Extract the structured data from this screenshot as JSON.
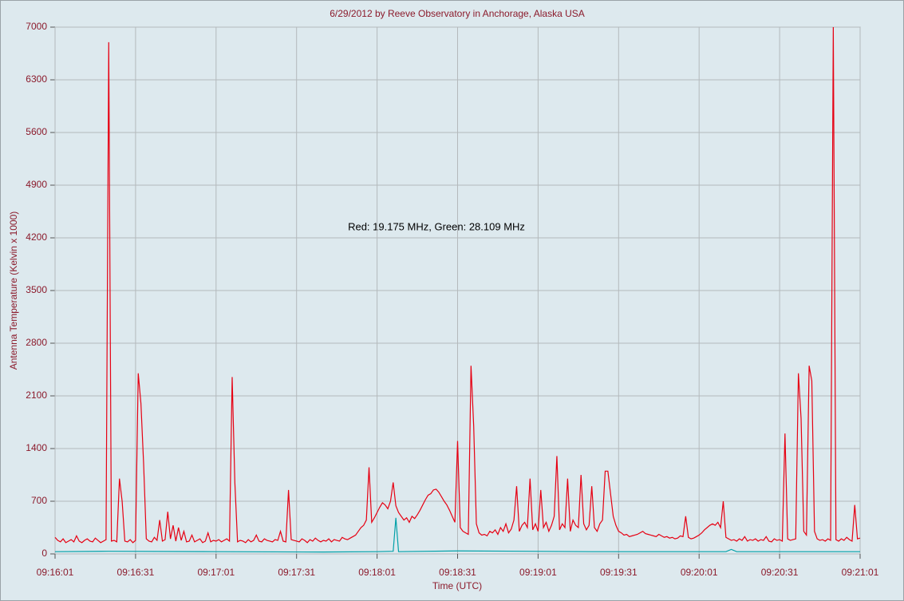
{
  "chart_data": {
    "type": "line",
    "title": "6/29/2012  by  Reeve Observatory  in  Anchorage, Alaska  USA",
    "x_label": "Time (UTC)",
    "y_label": "Antenna Temperature (Kelvin x 1000)",
    "annotation": "Red: 19.175 MHz, Green: 28.109 MHz",
    "xlim": [
      0,
      300
    ],
    "xticks": [
      {
        "value": 0,
        "label": "09:16:01"
      },
      {
        "value": 30,
        "label": "09:16:31"
      },
      {
        "value": 60,
        "label": "09:17:01"
      },
      {
        "value": 90,
        "label": "09:17:31"
      },
      {
        "value": 120,
        "label": "09:18:01"
      },
      {
        "value": 150,
        "label": "09:18:31"
      },
      {
        "value": 180,
        "label": "09:19:01"
      },
      {
        "value": 210,
        "label": "09:19:31"
      },
      {
        "value": 240,
        "label": "09:20:01"
      },
      {
        "value": 270,
        "label": "09:20:31"
      },
      {
        "value": 300,
        "label": "09:21:01"
      }
    ],
    "ylim": [
      0,
      7000
    ],
    "yticks": [
      0,
      700,
      1400,
      2100,
      2800,
      3500,
      4200,
      4900,
      5600,
      6300,
      7000
    ],
    "grid": true,
    "series": [
      {
        "color": "#e60012",
        "x": [
          0,
          1,
          2,
          3,
          4,
          5,
          6,
          7,
          8,
          9,
          10,
          11,
          12,
          13,
          14,
          15,
          16,
          17,
          18,
          19,
          20,
          21,
          22,
          23,
          24,
          25,
          26,
          27,
          28,
          29,
          30,
          31,
          32,
          33,
          34,
          35,
          36,
          37,
          38,
          39,
          40,
          41,
          42,
          43,
          44,
          45,
          46,
          47,
          48,
          49,
          50,
          51,
          52,
          53,
          54,
          55,
          56,
          57,
          58,
          59,
          60,
          61,
          62,
          63,
          64,
          65,
          66,
          67,
          68,
          69,
          70,
          71,
          72,
          73,
          74,
          75,
          76,
          77,
          78,
          79,
          80,
          81,
          82,
          83,
          84,
          85,
          86,
          87,
          88,
          89,
          90,
          91,
          92,
          93,
          94,
          95,
          96,
          97,
          98,
          99,
          100,
          101,
          102,
          103,
          104,
          105,
          106,
          107,
          108,
          109,
          110,
          111,
          112,
          113,
          114,
          115,
          116,
          117,
          118,
          119,
          120,
          121,
          122,
          123,
          124,
          125,
          126,
          127,
          128,
          129,
          130,
          131,
          132,
          133,
          134,
          135,
          136,
          137,
          138,
          139,
          140,
          141,
          142,
          143,
          144,
          145,
          146,
          147,
          148,
          149,
          150,
          151,
          152,
          153,
          154,
          155,
          156,
          157,
          158,
          159,
          160,
          161,
          162,
          163,
          164,
          165,
          166,
          167,
          168,
          169,
          170,
          171,
          172,
          173,
          174,
          175,
          176,
          177,
          178,
          179,
          180,
          181,
          182,
          183,
          184,
          185,
          186,
          187,
          188,
          189,
          190,
          191,
          192,
          193,
          194,
          195,
          196,
          197,
          198,
          199,
          200,
          201,
          202,
          203,
          204,
          205,
          206,
          207,
          208,
          209,
          210,
          211,
          212,
          213,
          214,
          215,
          216,
          217,
          218,
          219,
          220,
          221,
          222,
          223,
          224,
          225,
          226,
          227,
          228,
          229,
          230,
          231,
          232,
          233,
          234,
          235,
          236,
          237,
          238,
          239,
          240,
          241,
          242,
          243,
          244,
          245,
          246,
          247,
          248,
          249,
          250,
          251,
          252,
          253,
          254,
          255,
          256,
          257,
          258,
          259,
          260,
          261,
          262,
          263,
          264,
          265,
          266,
          267,
          268,
          269,
          270,
          271,
          272,
          273,
          274,
          275,
          276,
          277,
          278,
          279,
          280,
          281,
          282,
          283,
          284,
          285,
          286,
          287,
          288,
          289,
          290,
          291,
          292,
          293,
          294,
          295,
          296,
          297,
          298,
          299,
          300
        ],
        "values": [
          220,
          180,
          160,
          200,
          150,
          170,
          190,
          160,
          240,
          170,
          150,
          180,
          200,
          170,
          160,
          210,
          180,
          150,
          170,
          190,
          6800,
          170,
          180,
          160,
          1000,
          700,
          170,
          160,
          190,
          150,
          180,
          2400,
          2000,
          1200,
          200,
          170,
          160,
          220,
          180,
          450,
          170,
          190,
          560,
          200,
          380,
          170,
          350,
          180,
          300,
          160,
          170,
          250,
          160,
          180,
          200,
          150,
          170,
          280,
          160,
          180,
          170,
          190,
          160,
          180,
          200,
          170,
          2350,
          950,
          160,
          180,
          170,
          150,
          190,
          160,
          180,
          250,
          170,
          160,
          200,
          180,
          170,
          160,
          190,
          180,
          300,
          170,
          160,
          850,
          190,
          180,
          170,
          160,
          200,
          180,
          150,
          190,
          170,
          210,
          180,
          160,
          180,
          170,
          200,
          160,
          190,
          180,
          170,
          220,
          200,
          190,
          210,
          230,
          250,
          300,
          350,
          380,
          450,
          1150,
          420,
          480,
          550,
          620,
          680,
          650,
          600,
          700,
          950,
          640,
          550,
          500,
          450,
          480,
          420,
          500,
          470,
          520,
          580,
          650,
          720,
          780,
          800,
          850,
          860,
          820,
          760,
          700,
          650,
          580,
          500,
          420,
          1500,
          350,
          300,
          280,
          260,
          2500,
          1700,
          400,
          280,
          250,
          260,
          240,
          300,
          280,
          320,
          260,
          350,
          300,
          400,
          280,
          330,
          450,
          900,
          300,
          380,
          420,
          350,
          1000,
          320,
          400,
          300,
          850,
          350,
          420,
          300,
          380,
          500,
          1300,
          320,
          400,
          350,
          1000,
          300,
          450,
          380,
          350,
          1050,
          400,
          320,
          380,
          900,
          350,
          300,
          400,
          450,
          1100,
          1100,
          800,
          500,
          380,
          300,
          280,
          250,
          260,
          230,
          240,
          250,
          260,
          280,
          300,
          270,
          260,
          250,
          240,
          230,
          260,
          240,
          220,
          230,
          210,
          220,
          200,
          210,
          240,
          230,
          500,
          220,
          200,
          210,
          230,
          250,
          280,
          320,
          350,
          380,
          400,
          380,
          420,
          350,
          700,
          220,
          200,
          180,
          190,
          170,
          200,
          180,
          230,
          170,
          190,
          180,
          200,
          170,
          190,
          180,
          230,
          170,
          160,
          200,
          180,
          190,
          170,
          1600,
          200,
          180,
          190,
          200,
          2400,
          1800,
          300,
          250,
          2500,
          2300,
          300,
          200,
          180,
          190,
          170,
          200,
          180,
          7000,
          190,
          170,
          200,
          180,
          220,
          190,
          170,
          650,
          200,
          210
        ]
      },
      {
        "color": "#00a0a8",
        "x": [
          0,
          20,
          60,
          100,
          120,
          126,
          127,
          128,
          150,
          200,
          250,
          252,
          254,
          300
        ],
        "values": [
          30,
          35,
          30,
          25,
          30,
          35,
          480,
          30,
          40,
          30,
          30,
          60,
          30,
          30
        ]
      }
    ]
  }
}
